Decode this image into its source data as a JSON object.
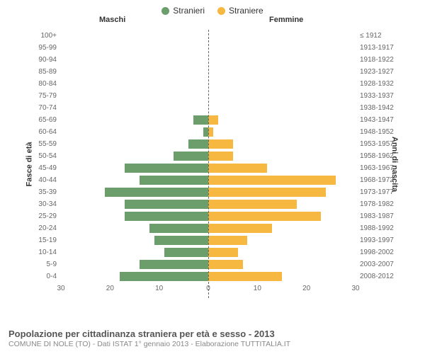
{
  "legend": {
    "male_label": "Stranieri",
    "female_label": "Straniere",
    "male_color": "#6b9e6b",
    "female_color": "#f6b841"
  },
  "headers": {
    "left": "Maschi",
    "right": "Femmine"
  },
  "axis_titles": {
    "left": "Fasce di età",
    "right": "Anni di nascita"
  },
  "chart": {
    "type": "population-pyramid",
    "x_max": 30,
    "x_ticks": [
      30,
      20,
      10,
      0,
      10,
      20,
      30
    ],
    "background_color": "#ffffff",
    "bar_stroke": "#ffffff",
    "rows": [
      {
        "age": "100+",
        "birth": "≤ 1912",
        "m": 0,
        "f": 0
      },
      {
        "age": "95-99",
        "birth": "1913-1917",
        "m": 0,
        "f": 0
      },
      {
        "age": "90-94",
        "birth": "1918-1922",
        "m": 0,
        "f": 0
      },
      {
        "age": "85-89",
        "birth": "1923-1927",
        "m": 0,
        "f": 0
      },
      {
        "age": "80-84",
        "birth": "1928-1932",
        "m": 0,
        "f": 0
      },
      {
        "age": "75-79",
        "birth": "1933-1937",
        "m": 0,
        "f": 0
      },
      {
        "age": "70-74",
        "birth": "1938-1942",
        "m": 0,
        "f": 0
      },
      {
        "age": "65-69",
        "birth": "1943-1947",
        "m": 3,
        "f": 2
      },
      {
        "age": "60-64",
        "birth": "1948-1952",
        "m": 1,
        "f": 1
      },
      {
        "age": "55-59",
        "birth": "1953-1957",
        "m": 4,
        "f": 5
      },
      {
        "age": "50-54",
        "birth": "1958-1962",
        "m": 7,
        "f": 5
      },
      {
        "age": "45-49",
        "birth": "1963-1967",
        "m": 17,
        "f": 12
      },
      {
        "age": "40-44",
        "birth": "1968-1972",
        "m": 14,
        "f": 26
      },
      {
        "age": "35-39",
        "birth": "1973-1977",
        "m": 21,
        "f": 24
      },
      {
        "age": "30-34",
        "birth": "1978-1982",
        "m": 17,
        "f": 18
      },
      {
        "age": "25-29",
        "birth": "1983-1987",
        "m": 17,
        "f": 23
      },
      {
        "age": "20-24",
        "birth": "1988-1992",
        "m": 12,
        "f": 13
      },
      {
        "age": "15-19",
        "birth": "1993-1997",
        "m": 11,
        "f": 8
      },
      {
        "age": "10-14",
        "birth": "1998-2002",
        "m": 9,
        "f": 6
      },
      {
        "age": "5-9",
        "birth": "2003-2007",
        "m": 14,
        "f": 7
      },
      {
        "age": "0-4",
        "birth": "2008-2012",
        "m": 18,
        "f": 15
      }
    ]
  },
  "footer": {
    "title": "Popolazione per cittadinanza straniera per età e sesso - 2013",
    "subtitle": "COMUNE DI NOLE (TO) - Dati ISTAT 1° gennaio 2013 - Elaborazione TUTTITALIA.IT"
  }
}
